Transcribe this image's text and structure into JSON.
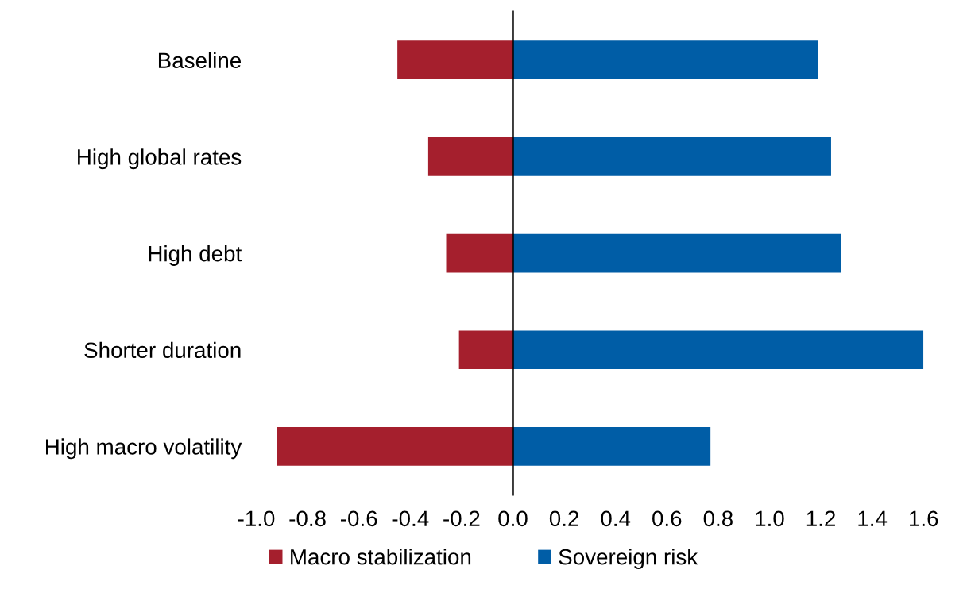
{
  "chart_data": {
    "type": "bar",
    "orientation": "horizontal",
    "stacked": true,
    "categories": [
      "Baseline",
      "High global rates",
      "High debt",
      "Shorter duration",
      "High macro volatility"
    ],
    "series": [
      {
        "name": "Macro stabilization",
        "color": "#a51f2d",
        "values": [
          -0.45,
          -0.33,
          -0.26,
          -0.21,
          -0.92
        ]
      },
      {
        "name": "Sovereign risk",
        "color": "#005da6",
        "values": [
          1.19,
          1.24,
          1.28,
          1.6,
          0.77
        ]
      }
    ],
    "xlim": [
      -1.0,
      1.6
    ],
    "xticks": [
      {
        "value": -1.0,
        "label": "-1.0"
      },
      {
        "value": -0.8,
        "label": "-0.8"
      },
      {
        "value": -0.6,
        "label": "-0.6"
      },
      {
        "value": -0.4,
        "label": "-0.4"
      },
      {
        "value": -0.2,
        "label": "-0.2"
      },
      {
        "value": 0.0,
        "label": "0.0"
      },
      {
        "value": 0.2,
        "label": "0.2"
      },
      {
        "value": 0.4,
        "label": "0.4"
      },
      {
        "value": 0.6,
        "label": "0.6"
      },
      {
        "value": 0.8,
        "label": "0.8"
      },
      {
        "value": 1.0,
        "label": "1.0"
      },
      {
        "value": 1.2,
        "label": "1.2"
      },
      {
        "value": 1.4,
        "label": "1.4"
      },
      {
        "value": 1.6,
        "label": "1.6"
      }
    ],
    "legend": "bottom"
  }
}
